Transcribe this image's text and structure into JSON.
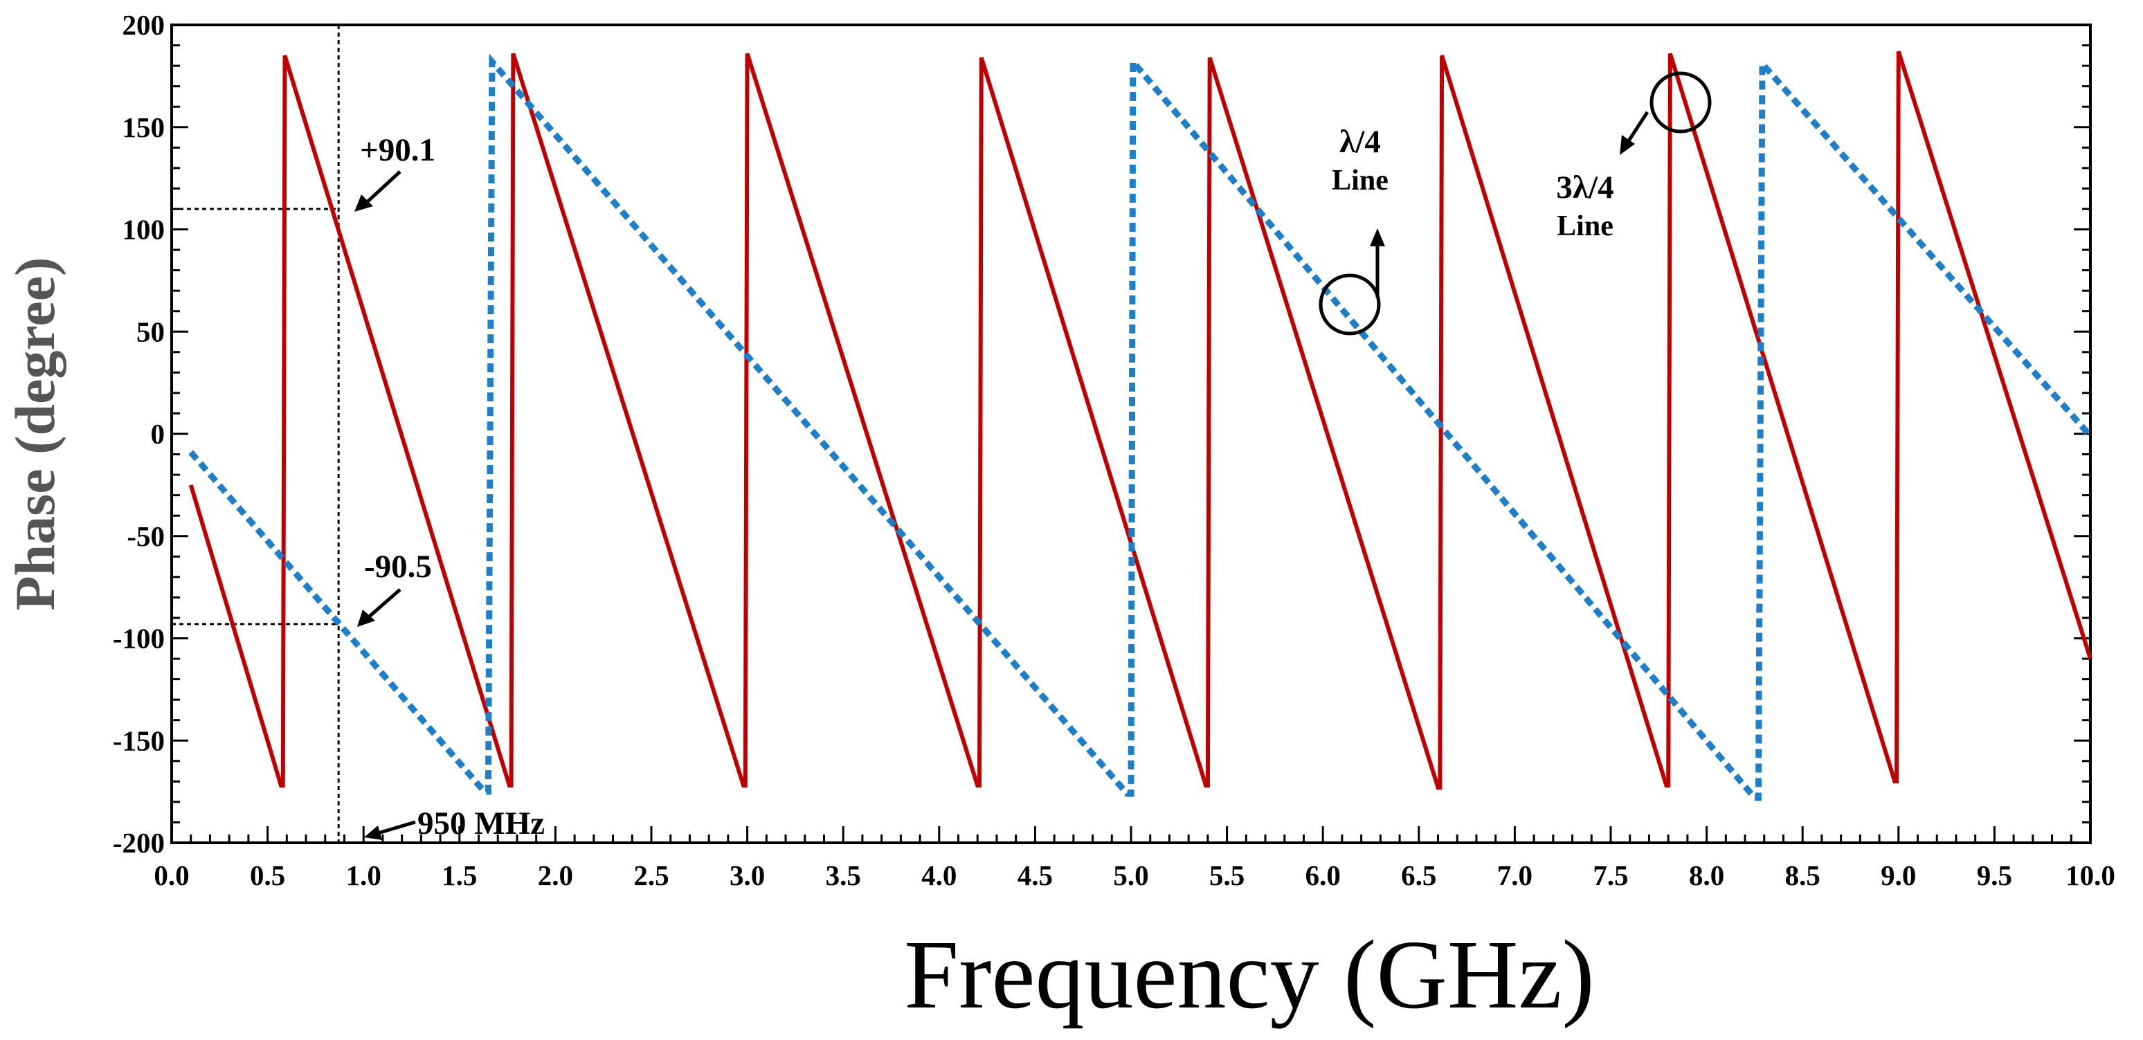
{
  "chart_data": {
    "type": "line",
    "title": "",
    "xlabel": "Frequency (GHz)",
    "ylabel": "Phase (degree)",
    "xlim": [
      0,
      10
    ],
    "ylim": [
      -200,
      200
    ],
    "x_ticks": [
      "0.0",
      "0.5",
      "1.0",
      "1.5",
      "2.0",
      "2.5",
      "3.0",
      "3.5",
      "4.0",
      "4.5",
      "5.0",
      "5.5",
      "6.0",
      "6.5",
      "7.0",
      "7.5",
      "8.0",
      "8.5",
      "9.0",
      "9.5",
      "10.0"
    ],
    "y_ticks": [
      "200",
      "150",
      "100",
      "50",
      "0",
      "-50",
      "-100",
      "-150",
      "-200"
    ],
    "grid": false,
    "series": [
      {
        "name": "3λ/4 Line",
        "color": "#c00000",
        "style": "solid",
        "points": [
          [
            0.1,
            -25
          ],
          [
            0.57,
            -172
          ],
          [
            0.58,
            -172
          ],
          [
            0.59,
            185
          ],
          [
            1.76,
            -172
          ],
          [
            1.77,
            -172
          ],
          [
            1.78,
            186
          ],
          [
            2.98,
            -172
          ],
          [
            2.99,
            -172
          ],
          [
            3.0,
            186
          ],
          [
            4.2,
            -172
          ],
          [
            4.21,
            -172
          ],
          [
            4.22,
            184
          ],
          [
            5.39,
            -172
          ],
          [
            5.4,
            -172
          ],
          [
            5.41,
            184
          ],
          [
            6.6,
            -173
          ],
          [
            6.61,
            -173
          ],
          [
            6.62,
            185
          ],
          [
            7.79,
            -172
          ],
          [
            7.8,
            -172
          ],
          [
            7.81,
            186
          ],
          [
            8.98,
            -170
          ],
          [
            8.99,
            -170
          ],
          [
            9.0,
            187
          ],
          [
            10.0,
            -110
          ]
        ]
      },
      {
        "name": "λ/4 Line",
        "color": "#1e7fc8",
        "style": "dotted",
        "points": [
          [
            0.1,
            -9
          ],
          [
            1.63,
            -175
          ],
          [
            1.65,
            -175
          ],
          [
            1.67,
            182
          ],
          [
            4.98,
            -176
          ],
          [
            5.0,
            -176
          ],
          [
            5.01,
            182
          ],
          [
            8.25,
            -178
          ],
          [
            8.27,
            -178
          ],
          [
            8.29,
            181
          ],
          [
            10.0,
            -1
          ]
        ]
      }
    ],
    "annotations": {
      "plus": "+90.1",
      "minus": "-90.5",
      "freq": "950 MHz",
      "quarter_title": "λ/4",
      "quarter_sub": "Line",
      "three_quarter_title": "3λ/4",
      "three_quarter_sub": "Line"
    },
    "markers": {
      "vline_x": 0.87,
      "hline_upper_y": 110,
      "hline_lower_y": -93
    }
  }
}
